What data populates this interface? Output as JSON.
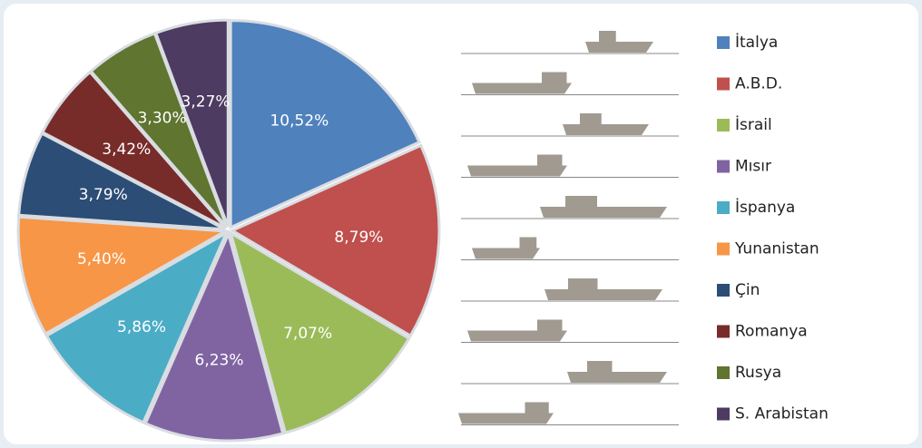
{
  "chart_data": {
    "type": "pie",
    "categories": [
      "İtalya",
      "A.B.D.",
      "İsrail",
      "Mısır",
      "İspanya",
      "Yunanistan",
      "Çin",
      "Romanya",
      "Rusya",
      "S. Arabistan"
    ],
    "values": [
      10.52,
      8.79,
      7.07,
      6.23,
      5.86,
      5.4,
      3.79,
      3.42,
      3.3,
      3.27
    ],
    "value_labels": [
      "10,52%",
      "8,79%",
      "7,07%",
      "6,23%",
      "5,86%",
      "5,40%",
      "3,79%",
      "3,42%",
      "3,30%",
      "3,27%"
    ],
    "colors": [
      "#4f81bd",
      "#c0504d",
      "#9bbb59",
      "#8064a2",
      "#4bacc6",
      "#f79646",
      "#2c4d75",
      "#772c2a",
      "#5f7530",
      "#4d3b62"
    ]
  }
}
